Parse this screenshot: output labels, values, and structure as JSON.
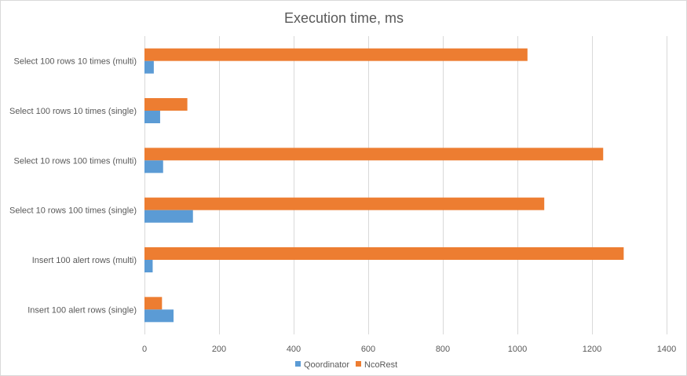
{
  "chart_data": {
    "type": "bar",
    "orientation": "horizontal",
    "title": "Execution time, ms",
    "xlabel": "",
    "ylabel": "",
    "xlim": [
      0,
      1400
    ],
    "x_ticks": [
      0,
      200,
      400,
      600,
      800,
      1000,
      1200,
      1400
    ],
    "grid": true,
    "legend_position": "bottom",
    "categories": [
      "Select 100 rows 10 times (multi)",
      "Select 100 rows 10 times (single)",
      "Select 10 rows 100 times (multi)",
      "Select 10 rows 100 times (single)",
      "Insert 100 alert rows (multi)",
      "Insert 100 alert rows (single)"
    ],
    "series": [
      {
        "name": "Qoordinator",
        "color": "#5b9bd5",
        "values": [
          25,
          42,
          50,
          130,
          22,
          78
        ]
      },
      {
        "name": "NcoRest",
        "color": "#ed7d31",
        "values": [
          1027,
          115,
          1230,
          1072,
          1285,
          47
        ]
      }
    ]
  }
}
